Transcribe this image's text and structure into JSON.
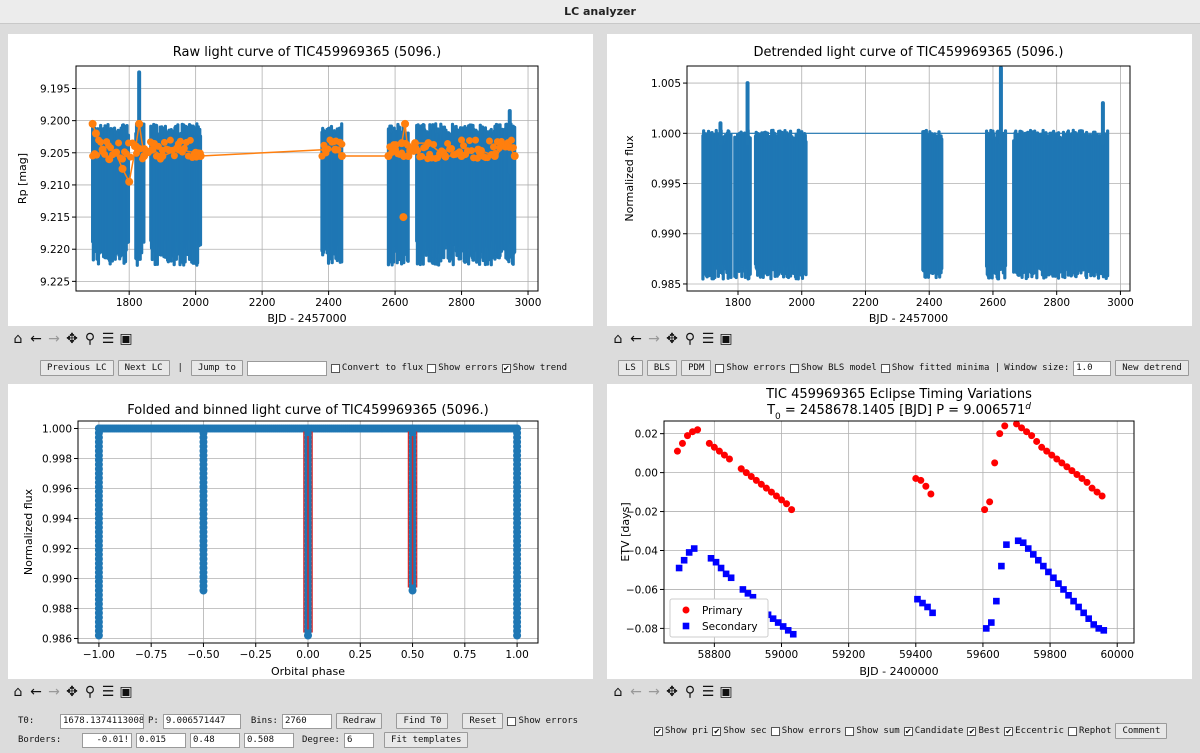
{
  "window": {
    "title": "LC analyzer"
  },
  "panels": {
    "raw": {
      "title": "Raw light curve of TIC459969365 (5096.)",
      "xlabel": "BJD - 2457000",
      "ylabel": "Rp [mag]",
      "xticks": [
        "1800",
        "2000",
        "2200",
        "2400",
        "2600",
        "2800",
        "3000"
      ],
      "yticks": [
        "9.195",
        "9.200",
        "9.205",
        "9.210",
        "9.215",
        "9.220",
        "9.225"
      ]
    },
    "detrended": {
      "title": "Detrended light curve of TIC459969365 (5096.)",
      "xlabel": "BJD - 2457000",
      "ylabel": "Normalized flux",
      "xticks": [
        "1800",
        "2000",
        "2200",
        "2400",
        "2600",
        "2800",
        "3000"
      ],
      "yticks": [
        "1.005",
        "1.000",
        "0.995",
        "0.990",
        "0.985"
      ]
    },
    "folded": {
      "title": "Folded and binned light curve of TIC459969365 (5096.)",
      "xlabel": "Orbital phase",
      "ylabel": "Normalized flux",
      "xticks": [
        "−1.00",
        "−0.75",
        "−0.50",
        "−0.25",
        "0.00",
        "0.25",
        "0.50",
        "0.75",
        "1.00"
      ],
      "yticks": [
        "1.000",
        "0.998",
        "0.996",
        "0.994",
        "0.992",
        "0.990",
        "0.988",
        "0.986"
      ]
    },
    "etv": {
      "title_line1": "TIC 459969365 Eclipse Timing Variations",
      "title_line2_a": "T",
      "title_line2_sub": "0",
      "title_line2_b": " = 2458678.1405 [BJD] P = 9.006571",
      "title_line2_sup": "d",
      "xlabel": "BJD - 2400000",
      "ylabel": "ETV [days]",
      "xticks": [
        "58800",
        "59000",
        "59200",
        "59400",
        "59600",
        "59800",
        "60000"
      ],
      "yticks": [
        "0.02",
        "0.00",
        "−0.02",
        "−0.04",
        "−0.06",
        "−0.08"
      ],
      "legend": [
        "Primary",
        "Secondary"
      ],
      "colors": {
        "primary": "#ff0000",
        "secondary": "#0000ff"
      }
    }
  },
  "chart_data": [
    {
      "type": "scatter",
      "title": "Raw light curve of TIC459969365 (5096.)",
      "xlabel": "BJD - 2457000",
      "ylabel": "Rp [mag]",
      "xlim": [
        1640,
        3030
      ],
      "ylim": [
        9.2265,
        9.1915
      ],
      "series": [
        {
          "color": "#1f77b4",
          "segments": [
            [
              1690,
              1800
            ],
            [
              1820,
              1845
            ],
            [
              1865,
              2015
            ],
            [
              2380,
              2440
            ],
            [
              2580,
              2640
            ],
            [
              2665,
              2960
            ]
          ],
          "range": [
            9.2005,
            9.2225
          ]
        },
        {
          "color": "#ff7f0e",
          "trend_x": [
            1690,
            1700,
            1720,
            1740,
            1760,
            1780,
            1800,
            1820,
            1830,
            1845,
            1870,
            1900,
            1950,
            2000,
            2015,
            2390,
            2420,
            2440,
            2580,
            2600,
            2620,
            2630,
            2640,
            2660,
            2700,
            2750,
            2800,
            2850,
            2900,
            2940,
            2960
          ],
          "trend_y": [
            9.2005,
            9.202,
            9.2045,
            9.206,
            9.205,
            9.2075,
            9.2095,
            9.204,
            9.2005,
            9.2055,
            9.2045,
            9.2055,
            9.2045,
            9.205,
            9.2055,
            9.2045,
            9.2045,
            9.2055,
            9.2055,
            9.2045,
            9.2035,
            9.2005,
            9.2055,
            9.2035,
            9.2035,
            9.2055,
            9.2055,
            9.2045,
            9.2055,
            9.2035,
            9.2055
          ]
        }
      ]
    },
    {
      "type": "scatter",
      "title": "Detrended light curve of TIC459969365 (5096.)",
      "xlabel": "BJD - 2457000",
      "ylabel": "Normalized flux",
      "xlim": [
        1640,
        3030
      ],
      "ylim": [
        0.9843,
        1.0067
      ],
      "series": [
        {
          "color": "#1f77b4",
          "segments": [
            [
              1690,
              1780
            ],
            [
              1790,
              1840
            ],
            [
              1855,
              2015
            ],
            [
              2380,
              2440
            ],
            [
              2580,
              2640
            ],
            [
              2665,
              2960
            ]
          ],
          "range": [
            0.9855,
            1.0003
          ]
        }
      ]
    },
    {
      "type": "scatter",
      "title": "Folded and binned light curve of TIC459969365 (5096.)",
      "xlabel": "Orbital phase",
      "ylabel": "Normalized flux",
      "xlim": [
        -1.1,
        1.1
      ],
      "ylim": [
        0.9857,
        1.0005
      ],
      "eclipses": [
        {
          "phase": -1.0,
          "depth": 0.9862
        },
        {
          "phase": -0.5,
          "depth": 0.9892
        },
        {
          "phase": 0.0,
          "depth": 0.9862
        },
        {
          "phase": 0.5,
          "depth": 0.9892
        },
        {
          "phase": 1.0,
          "depth": 0.9862
        }
      ],
      "series": [
        {
          "color": "#1f77b4",
          "baseline": 1.0
        }
      ]
    },
    {
      "type": "scatter",
      "title": "TIC 459969365 Eclipse Timing Variations",
      "xlabel": "BJD - 2400000",
      "ylabel": "ETV [days]",
      "xlim": [
        58650,
        60050
      ],
      "ylim": [
        -0.0875,
        0.0265
      ],
      "legend_position": "lower-left",
      "series": [
        {
          "name": "Primary",
          "marker": "circle",
          "color": "#ff0000",
          "x": [
            58690,
            58705,
            58720,
            58735,
            58750,
            58785,
            58800,
            58815,
            58830,
            58845,
            58880,
            58895,
            58910,
            58925,
            58940,
            58955,
            58970,
            58985,
            59000,
            59015,
            59030,
            59400,
            59415,
            59430,
            59445,
            59605,
            59620,
            59635,
            59650,
            59665,
            59700,
            59715,
            59730,
            59745,
            59760,
            59775,
            59790,
            59805,
            59820,
            59835,
            59850,
            59865,
            59880,
            59895,
            59910,
            59925,
            59940,
            59955
          ],
          "y": [
            0.011,
            0.015,
            0.019,
            0.021,
            0.022,
            0.015,
            0.013,
            0.011,
            0.009,
            0.007,
            0.002,
            0.0,
            -0.002,
            -0.004,
            -0.006,
            -0.008,
            -0.01,
            -0.012,
            -0.014,
            -0.016,
            -0.019,
            -0.003,
            -0.004,
            -0.007,
            -0.011,
            -0.019,
            -0.015,
            0.005,
            0.02,
            0.024,
            0.025,
            0.023,
            0.021,
            0.019,
            0.016,
            0.013,
            0.011,
            0.009,
            0.007,
            0.005,
            0.003,
            0.001,
            -0.001,
            -0.003,
            -0.005,
            -0.008,
            -0.01,
            -0.012
          ]
        },
        {
          "name": "Secondary",
          "marker": "square",
          "color": "#0000ff",
          "x": [
            58695,
            58710,
            58725,
            58740,
            58790,
            58805,
            58820,
            58835,
            58850,
            58885,
            58900,
            58915,
            58930,
            58945,
            58960,
            58975,
            58990,
            59005,
            59020,
            59035,
            59405,
            59420,
            59435,
            59450,
            59610,
            59625,
            59640,
            59655,
            59670,
            59705,
            59720,
            59735,
            59750,
            59765,
            59780,
            59795,
            59810,
            59825,
            59840,
            59855,
            59870,
            59885,
            59900,
            59915,
            59930,
            59945,
            59960
          ],
          "y": [
            -0.049,
            -0.045,
            -0.041,
            -0.039,
            -0.044,
            -0.046,
            -0.049,
            -0.052,
            -0.054,
            -0.06,
            -0.062,
            -0.064,
            -0.067,
            -0.07,
            -0.073,
            -0.075,
            -0.077,
            -0.079,
            -0.081,
            -0.083,
            -0.065,
            -0.067,
            -0.069,
            -0.072,
            -0.08,
            -0.077,
            -0.066,
            -0.048,
            -0.037,
            -0.035,
            -0.036,
            -0.039,
            -0.042,
            -0.045,
            -0.048,
            -0.051,
            -0.054,
            -0.057,
            -0.06,
            -0.063,
            -0.066,
            -0.069,
            -0.072,
            -0.075,
            -0.078,
            -0.08,
            -0.081
          ]
        }
      ]
    }
  ],
  "controls": {
    "row1": {
      "prev_lc": "Previous LC",
      "next_lc": "Next LC",
      "sep": "|",
      "jump_to": "Jump to",
      "jump_value": "",
      "convert_to_flux": "Convert to flux",
      "show_errors": "Show errors",
      "show_trend": "Show trend",
      "ls": "LS",
      "bls": "BLS",
      "pdm": "PDM",
      "show_errors_right": "Show errors",
      "show_bls_model": "Show BLS model",
      "show_fitted_minima": "Show fitted minima |",
      "window_size_label": "Window size:",
      "window_size": "1.0",
      "new_detrend": "New detrend"
    },
    "row2": {
      "t0_label": "T0:",
      "t0_value": "1678.1374113008",
      "p_label": "P:",
      "p_value": "9.006571447",
      "bins_label": "Bins:",
      "bins_value": "2760",
      "redraw": "Redraw",
      "find_t0": "Find T0",
      "reset": "Reset",
      "show_errors": "Show errors"
    },
    "row3": {
      "borders_label": "Borders:",
      "b1": "-0.01!",
      "b2": "0.015",
      "b3": "0.48",
      "b4": "0.508",
      "degree_label": "Degree:",
      "degree_value": "6",
      "fit_templates": "Fit templates"
    },
    "etv_row": {
      "show_pri": "Show pri",
      "show_sec": "Show sec",
      "show_errors": "Show errors",
      "show_sum": "Show sum",
      "candidate": "Candidate",
      "best": "Best",
      "eccentric": "Eccentric",
      "rephot": "Rephot",
      "comment": "Comment"
    },
    "check_mark": "✔"
  },
  "icons": [
    "home-icon",
    "back-icon",
    "forward-icon",
    "pan-icon",
    "zoom-icon",
    "configure-icon",
    "save-icon"
  ]
}
